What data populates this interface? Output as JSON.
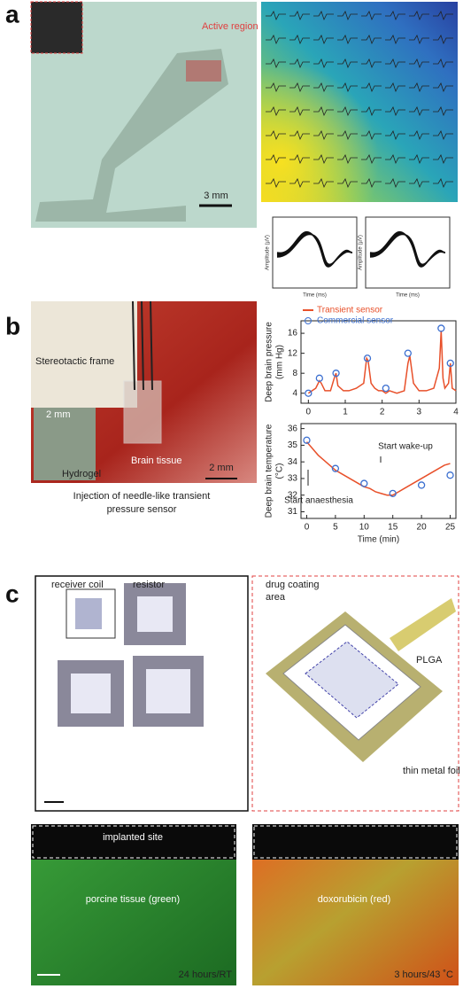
{
  "panels": {
    "a": {
      "label": "a",
      "active_region": "Active region",
      "scale_bar": "3 mm",
      "waveforms": [
        {
          "y_label": "Amplitude (µV)",
          "x_label": "Time (ms)"
        },
        {
          "y_label": "Amplitude (µV)",
          "x_label": "Time (ms)"
        }
      ]
    },
    "b": {
      "label": "b",
      "stereotactic_frame": "Stereotactic frame",
      "brain_tissue": "Brain tissue",
      "scale_bar": "2 mm",
      "inset_scale_bar": "2 mm",
      "hydrogel": "Hydrogel",
      "caption": [
        "Injection of needle-like transient",
        "pressure sensor"
      ]
    },
    "c": {
      "label": "c",
      "receiver_coil": "receiver coil",
      "resistor": "resistor",
      "drug_coating_area": [
        "drug coating",
        "area"
      ],
      "plga": "PLGA",
      "thin_metal_foil": "thin metal foil",
      "implanted_site": "implanted site",
      "porcine_tissue": "porcine tissue (green)",
      "doxorubicin": "doxorubicin (red)",
      "left_condition": "24 hours/RT",
      "right_condition": "3 hours/43 ˚C"
    }
  },
  "chart_data": [
    {
      "type": "line",
      "y_label": [
        "Deep brain pressure",
        "(mm Hg)"
      ],
      "xlim": [
        -0.2,
        4
      ],
      "xticks": [
        0,
        1,
        2,
        3,
        4
      ],
      "ylim": [
        2,
        18.5
      ],
      "yticks": [
        4,
        8,
        12,
        16
      ],
      "legend": "top-left",
      "series": [
        {
          "name": "Transient sensor",
          "color": "#e8502a",
          "mode": "line",
          "x": [
            0,
            0.1,
            0.2,
            0.3,
            0.35,
            0.45,
            0.6,
            0.7,
            0.75,
            0.8,
            0.95,
            1.1,
            1.3,
            1.5,
            1.58,
            1.62,
            1.7,
            1.8,
            1.9,
            2.0,
            2.1,
            2.2,
            2.4,
            2.6,
            2.7,
            2.75,
            2.85,
            3.0,
            3.2,
            3.4,
            3.55,
            3.6,
            3.65,
            3.7,
            3.8,
            3.85,
            3.9,
            4.0
          ],
          "values": [
            4,
            4.5,
            5,
            6.5,
            6,
            4.5,
            4.5,
            7,
            8,
            5.5,
            4.5,
            4.5,
            5,
            6,
            11,
            10.5,
            6,
            5,
            4.5,
            4.5,
            4,
            4.5,
            4,
            4.5,
            10,
            11.5,
            6,
            4.5,
            4.5,
            5,
            9,
            16.5,
            7,
            5,
            6,
            10,
            5,
            4.5
          ]
        },
        {
          "name": "Commercial sensor",
          "color": "#3b6fd0",
          "mode": "markers",
          "x": [
            0,
            0.3,
            0.75,
            1.6,
            2.1,
            2.7,
            3.6,
            3.85
          ],
          "values": [
            4,
            7,
            8,
            11,
            5,
            12,
            17,
            10
          ]
        }
      ]
    },
    {
      "type": "line",
      "y_label": [
        "Deep brain temperature",
        "(°C)"
      ],
      "x_label": "Time (min)",
      "xlim": [
        -1,
        26
      ],
      "xticks": [
        0,
        5,
        10,
        15,
        20,
        25
      ],
      "ylim": [
        30.6,
        36.3
      ],
      "yticks": [
        31,
        32,
        33,
        34,
        35,
        36
      ],
      "annotations": [
        "Start wake-up",
        "Start anaesthesia"
      ],
      "series": [
        {
          "color": "#e8502a",
          "mode": "line",
          "x": [
            0,
            1,
            2,
            3,
            4,
            5,
            6,
            7,
            8,
            9,
            10,
            11,
            12,
            13,
            14,
            15,
            16,
            17,
            18,
            19,
            20,
            21,
            22,
            23,
            24,
            25
          ],
          "values": [
            35.2,
            34.8,
            34.4,
            34.1,
            33.8,
            33.5,
            33.3,
            33.1,
            32.9,
            32.7,
            32.5,
            32.4,
            32.2,
            32.1,
            32.0,
            32.0,
            32.2,
            32.4,
            32.6,
            32.8,
            33.0,
            33.2,
            33.4,
            33.6,
            33.8,
            33.9
          ]
        },
        {
          "color": "#3b6fd0",
          "mode": "markers",
          "x": [
            0,
            5,
            10,
            15,
            20,
            25
          ],
          "values": [
            35.3,
            33.6,
            32.7,
            32.1,
            32.6,
            33.2
          ]
        }
      ]
    }
  ]
}
